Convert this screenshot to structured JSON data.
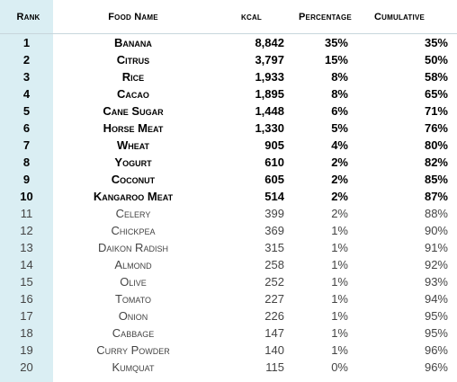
{
  "headers": {
    "rank": "Rank",
    "food": "Food Name",
    "kcal": "kcal",
    "percentage": "Percentage",
    "cumulative": "Cumulative"
  },
  "rows": [
    {
      "rank": "1",
      "food": "Banana",
      "kcal": "8,842",
      "percentage": "35%",
      "cumulative": "35%"
    },
    {
      "rank": "2",
      "food": "Citrus",
      "kcal": "3,797",
      "percentage": "15%",
      "cumulative": "50%"
    },
    {
      "rank": "3",
      "food": "Rice",
      "kcal": "1,933",
      "percentage": "8%",
      "cumulative": "58%"
    },
    {
      "rank": "4",
      "food": "Cacao",
      "kcal": "1,895",
      "percentage": "8%",
      "cumulative": "65%"
    },
    {
      "rank": "5",
      "food": "Cane Sugar",
      "kcal": "1,448",
      "percentage": "6%",
      "cumulative": "71%"
    },
    {
      "rank": "6",
      "food": "Horse Meat",
      "kcal": "1,330",
      "percentage": "5%",
      "cumulative": "76%"
    },
    {
      "rank": "7",
      "food": "Wheat",
      "kcal": "905",
      "percentage": "4%",
      "cumulative": "80%"
    },
    {
      "rank": "8",
      "food": "Yogurt",
      "kcal": "610",
      "percentage": "2%",
      "cumulative": "82%"
    },
    {
      "rank": "9",
      "food": "Coconut",
      "kcal": "605",
      "percentage": "2%",
      "cumulative": "85%"
    },
    {
      "rank": "10",
      "food": "Kangaroo Meat",
      "kcal": "514",
      "percentage": "2%",
      "cumulative": "87%"
    },
    {
      "rank": "11",
      "food": "Celery",
      "kcal": "399",
      "percentage": "2%",
      "cumulative": "88%"
    },
    {
      "rank": "12",
      "food": "Chickpea",
      "kcal": "369",
      "percentage": "1%",
      "cumulative": "90%"
    },
    {
      "rank": "13",
      "food": "Daikon Radish",
      "kcal": "315",
      "percentage": "1%",
      "cumulative": "91%"
    },
    {
      "rank": "14",
      "food": "Almond",
      "kcal": "258",
      "percentage": "1%",
      "cumulative": "92%"
    },
    {
      "rank": "15",
      "food": "Olive",
      "kcal": "252",
      "percentage": "1%",
      "cumulative": "93%"
    },
    {
      "rank": "16",
      "food": "Tomato",
      "kcal": "227",
      "percentage": "1%",
      "cumulative": "94%"
    },
    {
      "rank": "17",
      "food": "Onion",
      "kcal": "226",
      "percentage": "1%",
      "cumulative": "95%"
    },
    {
      "rank": "18",
      "food": "Cabbage",
      "kcal": "147",
      "percentage": "1%",
      "cumulative": "95%"
    },
    {
      "rank": "19",
      "food": "Curry Powder",
      "kcal": "140",
      "percentage": "1%",
      "cumulative": "96%"
    },
    {
      "rank": "20",
      "food": "Kumquat",
      "kcal": "115",
      "percentage": "0%",
      "cumulative": "96%"
    }
  ],
  "colors": {
    "rank_band": "#daeef3",
    "text_bold": "#000000",
    "text_regular": "#444444"
  }
}
